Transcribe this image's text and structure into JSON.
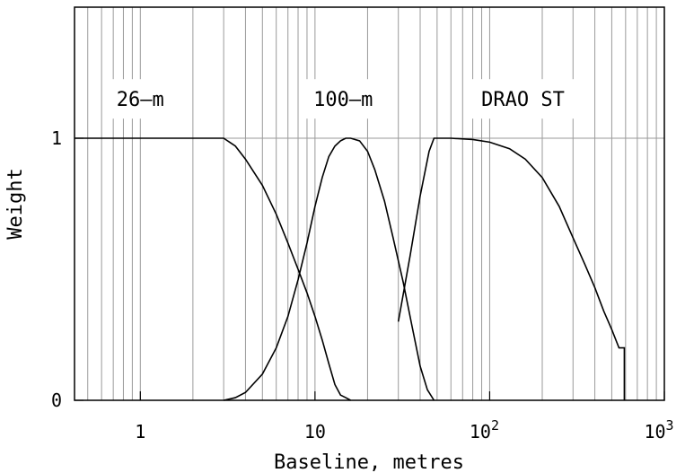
{
  "chart_data": {
    "type": "line",
    "xscale": "log",
    "xlim": [
      0.42,
      1000
    ],
    "ylim": [
      0,
      1.5
    ],
    "xlabel": "Baseline, metres",
    "ylabel": "Weight",
    "grid": "vertical minor lines + y=1 line",
    "x_ticks": [
      {
        "value": 1,
        "label": "1"
      },
      {
        "value": 10,
        "label": "10"
      },
      {
        "value": 100,
        "label": "10",
        "exponent": "2"
      },
      {
        "value": 1000,
        "label": "10",
        "exponent": "3"
      }
    ],
    "y_ticks": [
      {
        "value": 0,
        "label": "0"
      },
      {
        "value": 1,
        "label": "1"
      }
    ],
    "annotations": [
      {
        "text": "26–m",
        "x": 1.0,
        "y": 1.15
      },
      {
        "text": "100–m",
        "x": 14.5,
        "y": 1.15
      },
      {
        "text": "DRAO ST",
        "x": 155,
        "y": 1.15
      }
    ],
    "series": [
      {
        "x": [
          0.42,
          1,
          2,
          3,
          3.5,
          4,
          5,
          6,
          7,
          8,
          9,
          10,
          11,
          12,
          13,
          14,
          15,
          16
        ],
        "y": [
          1,
          1,
          1,
          1,
          0.97,
          0.92,
          0.82,
          0.71,
          0.6,
          0.5,
          0.41,
          0.32,
          0.23,
          0.14,
          0.06,
          0.02,
          0.01,
          0
        ]
      },
      {
        "x": [
          3,
          3.5,
          4,
          5,
          6,
          7,
          8,
          9,
          10,
          11,
          12,
          13,
          14,
          15,
          16,
          18,
          20,
          22,
          25,
          28,
          32,
          36,
          40,
          44,
          48
        ],
        "y": [
          0,
          0.01,
          0.03,
          0.1,
          0.2,
          0.32,
          0.46,
          0.6,
          0.74,
          0.85,
          0.93,
          0.97,
          0.99,
          1,
          1,
          0.99,
          0.95,
          0.88,
          0.76,
          0.62,
          0.45,
          0.28,
          0.13,
          0.04,
          0
        ]
      },
      {
        "x": [
          30,
          35,
          40,
          45,
          48,
          50,
          60,
          80,
          100,
          130,
          160,
          200,
          250,
          300,
          350,
          400,
          450,
          500,
          550,
          580,
          590,
          590
        ],
        "y": [
          0.3,
          0.55,
          0.78,
          0.95,
          1,
          1,
          1,
          0.995,
          0.985,
          0.96,
          0.92,
          0.85,
          0.74,
          0.62,
          0.52,
          0.43,
          0.34,
          0.27,
          0.2,
          0.2,
          0.2,
          0
        ]
      }
    ]
  }
}
